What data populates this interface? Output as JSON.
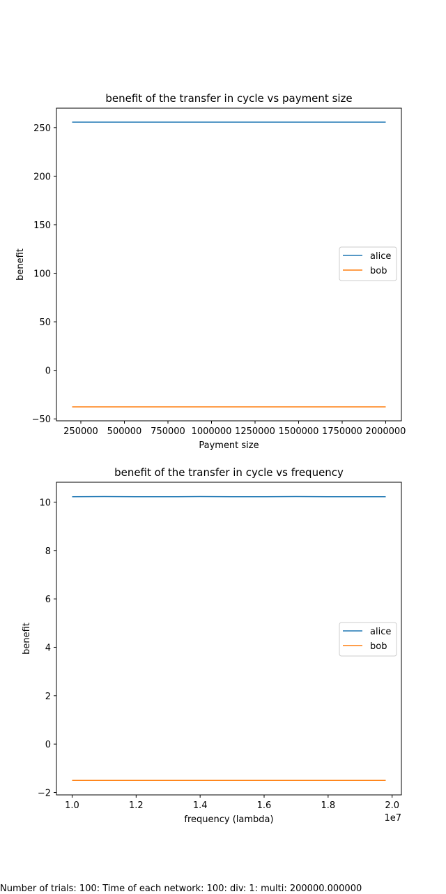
{
  "chart_data": [
    {
      "type": "line",
      "title": "benefit of the transfer in cycle vs payment size",
      "xlabel": "Payment size",
      "ylabel": "benefit",
      "x": [
        200000,
        400000,
        600000,
        800000,
        1000000,
        1200000,
        1400000,
        1600000,
        1800000,
        2000000
      ],
      "xlim": [
        110000,
        2090000
      ],
      "ylim": [
        -52,
        270
      ],
      "xticks": [
        250000,
        500000,
        750000,
        1000000,
        1250000,
        1500000,
        1750000,
        2000000
      ],
      "xtick_labels": [
        "250000",
        "500000",
        "750000",
        "1000000",
        "1250000",
        "1500000",
        "1750000",
        "2000000"
      ],
      "yticks": [
        -50,
        0,
        50,
        100,
        150,
        200,
        250
      ],
      "ytick_labels": [
        "−50",
        "0",
        "50",
        "100",
        "150",
        "200",
        "250"
      ],
      "x_offset_label": "",
      "legend_position": "center-right",
      "series": [
        {
          "name": "alice",
          "color": "#1f77b4",
          "values": [
            255.6,
            255.6,
            255.6,
            255.6,
            255.6,
            255.6,
            255.6,
            255.6,
            255.6,
            255.6
          ]
        },
        {
          "name": "bob",
          "color": "#ff7f0e",
          "values": [
            -37.6,
            -37.6,
            -37.6,
            -37.6,
            -37.6,
            -37.6,
            -37.6,
            -37.6,
            -37.6,
            -37.6
          ]
        }
      ]
    },
    {
      "type": "line",
      "title": "benefit of the transfer in cycle vs frequency",
      "xlabel": "frequency (lambda)",
      "ylabel": "benefit",
      "x": [
        1.0,
        1.1,
        1.2,
        1.3,
        1.4,
        1.5,
        1.6,
        1.7,
        1.8,
        1.9,
        1.98
      ],
      "xlim": [
        0.951,
        2.029
      ],
      "ylim": [
        -2.1,
        10.82
      ],
      "xticks": [
        1.0,
        1.2,
        1.4,
        1.6,
        1.8,
        2.0
      ],
      "xtick_labels": [
        "1.0",
        "1.2",
        "1.4",
        "1.6",
        "1.8",
        "2.0"
      ],
      "yticks": [
        -2,
        0,
        2,
        4,
        6,
        8,
        10
      ],
      "ytick_labels": [
        "−2",
        "0",
        "2",
        "4",
        "6",
        "8",
        "10"
      ],
      "x_offset_label": "1e7",
      "legend_position": "center-right",
      "series": [
        {
          "name": "alice",
          "color": "#1f77b4",
          "values": [
            10.22,
            10.23,
            10.22,
            10.22,
            10.23,
            10.22,
            10.22,
            10.23,
            10.22,
            10.22,
            10.22
          ]
        },
        {
          "name": "bob",
          "color": "#ff7f0e",
          "values": [
            -1.5,
            -1.5,
            -1.5,
            -1.5,
            -1.5,
            -1.5,
            -1.5,
            -1.5,
            -1.5,
            -1.5,
            -1.5
          ]
        }
      ]
    }
  ],
  "footer": {
    "text": "Number of trials: 100: Time of each network: 100: div: 1: multi: 200000.000000"
  }
}
